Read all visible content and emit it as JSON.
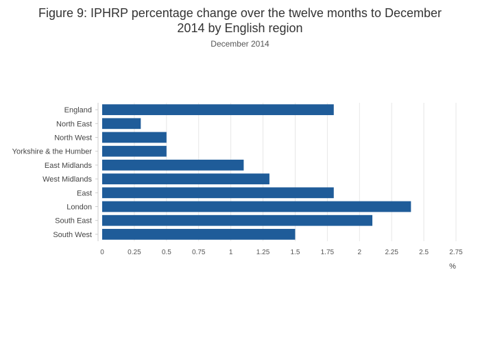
{
  "chart_data": {
    "type": "bar",
    "orientation": "horizontal",
    "title_lines": [
      "Figure 9: IPHRP percentage change over the twelve months to December",
      "2014 by English region"
    ],
    "subtitle": "December 2014",
    "xlabel": "%",
    "ylabel": "",
    "categories": [
      "England",
      "North East",
      "North West",
      "Yorkshire & the Humber",
      "East Midlands",
      "West Midlands",
      "East",
      "London",
      "South East",
      "South West"
    ],
    "values": [
      1.8,
      0.3,
      0.5,
      0.5,
      1.1,
      1.3,
      1.8,
      2.4,
      2.1,
      1.5
    ],
    "xlim": [
      0,
      2.75
    ],
    "ticks": [
      "0",
      "0.25",
      "0.5",
      "0.75",
      "1",
      "1.25",
      "1.5",
      "1.75",
      "2",
      "2.25",
      "2.5",
      "2.75"
    ],
    "grid": true,
    "bar_color": "#1f5c99",
    "grid_color": "#e6e6e6"
  }
}
